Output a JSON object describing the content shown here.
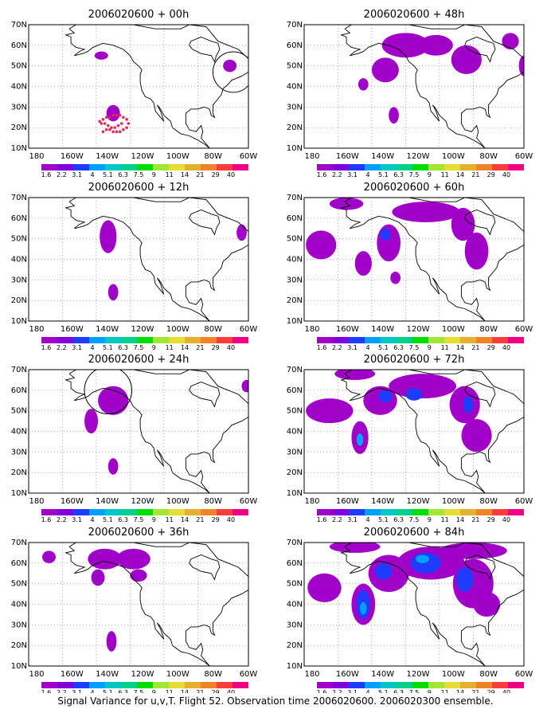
{
  "caption": "Signal Variance for u,v,T. Flight 52. Observation time 2006020600. 2006020300 ensemble.",
  "colorbar": {
    "labels": [
      "1.6",
      "2.2",
      "3.1",
      "4",
      "5.1",
      "6.3",
      "7.5",
      "9",
      "11",
      "14",
      "21",
      "29",
      "40"
    ],
    "colors": [
      "#a000c8",
      "#8200dc",
      "#1e3cff",
      "#00a0ff",
      "#00c8c8",
      "#00d28c",
      "#00dc00",
      "#a0e632",
      "#e6dc32",
      "#e6af2d",
      "#f08228",
      "#fa3c3c",
      "#f00082"
    ]
  },
  "axes": {
    "x_ticks": [
      "180",
      "160W",
      "140W",
      "120W",
      "100W",
      "80W",
      "60W"
    ],
    "y_ticks": [
      "10N",
      "20N",
      "30N",
      "40N",
      "50N",
      "60N",
      "70N"
    ],
    "xlim_deg_east": [
      170,
      300
    ],
    "ylim_deg_north": [
      10,
      70
    ],
    "grid": true
  },
  "chart_data": [
    {
      "type": "heatmap",
      "title": "2006020600 + 00h",
      "blobs": [
        {
          "lon": -147,
          "lat": 55,
          "rx": 4,
          "ry": 2,
          "level": 1
        },
        {
          "lon": -71,
          "lat": 50,
          "rx": 4,
          "ry": 3,
          "level": 1
        },
        {
          "lon": -140,
          "lat": 27,
          "rx": 4,
          "ry": 4,
          "level": 1
        }
      ],
      "points_lon": [
        -148,
        -146,
        -144,
        -142,
        -140,
        -138,
        -136,
        -134,
        -132,
        -131,
        -132,
        -134,
        -136,
        -138,
        -140,
        -142,
        -144,
        -146,
        -147,
        -145,
        -143,
        -141,
        -139,
        -137,
        -135
      ],
      "points_lat": [
        23,
        24,
        25,
        25,
        26,
        26,
        26,
        25,
        24,
        22,
        20,
        19,
        18,
        18,
        18,
        19,
        19,
        18,
        22,
        22,
        21,
        20,
        20,
        21,
        22
      ],
      "circle": {
        "lon": -69,
        "lat": 47,
        "r": 12
      }
    },
    {
      "type": "heatmap",
      "title": "2006020600 + 48h",
      "blobs": [
        {
          "lon": -142,
          "lat": 48,
          "rx": 8,
          "ry": 6,
          "level": 1
        },
        {
          "lon": -130,
          "lat": 60,
          "rx": 14,
          "ry": 6,
          "level": 1
        },
        {
          "lon": -112,
          "lat": 60,
          "rx": 10,
          "ry": 5,
          "level": 1
        },
        {
          "lon": -94,
          "lat": 53,
          "rx": 9,
          "ry": 7,
          "level": 1
        },
        {
          "lon": -155,
          "lat": 41,
          "rx": 3,
          "ry": 3,
          "level": 1
        },
        {
          "lon": -137,
          "lat": 26,
          "rx": 3,
          "ry": 4,
          "level": 1
        },
        {
          "lon": -68,
          "lat": 62,
          "rx": 5,
          "ry": 4,
          "level": 1
        },
        {
          "lon": -60,
          "lat": 50,
          "rx": 3,
          "ry": 5,
          "level": 1
        }
      ]
    },
    {
      "type": "heatmap",
      "title": "2006020600 + 12h",
      "blobs": [
        {
          "lon": -143,
          "lat": 51,
          "rx": 5,
          "ry": 8,
          "level": 1
        },
        {
          "lon": -140,
          "lat": 24,
          "rx": 3,
          "ry": 4,
          "level": 1
        },
        {
          "lon": -64,
          "lat": 53,
          "rx": 3,
          "ry": 4,
          "level": 1
        }
      ]
    },
    {
      "type": "heatmap",
      "title": "2006020600 + 60h",
      "blobs": [
        {
          "lon": -180,
          "lat": 47,
          "rx": 9,
          "ry": 7,
          "level": 1
        },
        {
          "lon": -155,
          "lat": 38,
          "rx": 5,
          "ry": 6,
          "level": 1
        },
        {
          "lon": -140,
          "lat": 48,
          "rx": 7,
          "ry": 9,
          "level": 1
        },
        {
          "lon": -118,
          "lat": 63,
          "rx": 20,
          "ry": 5,
          "level": 1
        },
        {
          "lon": -96,
          "lat": 57,
          "rx": 7,
          "ry": 8,
          "level": 1
        },
        {
          "lon": -88,
          "lat": 44,
          "rx": 7,
          "ry": 9,
          "level": 1
        },
        {
          "lon": -165,
          "lat": 67,
          "rx": 10,
          "ry": 3,
          "level": 1
        },
        {
          "lon": -136,
          "lat": 31,
          "rx": 3,
          "ry": 3,
          "level": 1
        },
        {
          "lon": -142,
          "lat": 52,
          "rx": 3,
          "ry": 3,
          "level": 2
        }
      ]
    },
    {
      "type": "heatmap",
      "title": "2006020600 + 24h",
      "blobs": [
        {
          "lon": -140,
          "lat": 55,
          "rx": 9,
          "ry": 7,
          "level": 1
        },
        {
          "lon": -153,
          "lat": 45,
          "rx": 4,
          "ry": 6,
          "level": 1
        },
        {
          "lon": -140,
          "lat": 23,
          "rx": 3,
          "ry": 4,
          "level": 1
        },
        {
          "lon": -61,
          "lat": 62,
          "rx": 3,
          "ry": 3,
          "level": 1
        }
      ],
      "circle": {
        "lon": -143,
        "lat": 60,
        "r": 14
      }
    },
    {
      "type": "heatmap",
      "title": "2006020600 + 72h",
      "blobs": [
        {
          "lon": -175,
          "lat": 50,
          "rx": 14,
          "ry": 6,
          "level": 1
        },
        {
          "lon": -157,
          "lat": 37,
          "rx": 5,
          "ry": 8,
          "level": 1
        },
        {
          "lon": -145,
          "lat": 55,
          "rx": 10,
          "ry": 7,
          "level": 1
        },
        {
          "lon": -120,
          "lat": 62,
          "rx": 20,
          "ry": 6,
          "level": 1
        },
        {
          "lon": -95,
          "lat": 53,
          "rx": 9,
          "ry": 9,
          "level": 1
        },
        {
          "lon": -88,
          "lat": 38,
          "rx": 9,
          "ry": 8,
          "level": 1
        },
        {
          "lon": -160,
          "lat": 68,
          "rx": 12,
          "ry": 3,
          "level": 1
        },
        {
          "lon": -157,
          "lat": 36,
          "rx": 2,
          "ry": 3,
          "level": 3
        },
        {
          "lon": -142,
          "lat": 57,
          "rx": 4,
          "ry": 3,
          "level": 2
        },
        {
          "lon": -125,
          "lat": 58,
          "rx": 5,
          "ry": 3,
          "level": 2
        },
        {
          "lon": -93,
          "lat": 53,
          "rx": 3,
          "ry": 4,
          "level": 2
        }
      ]
    },
    {
      "type": "heatmap",
      "title": "2006020600 + 36h",
      "blobs": [
        {
          "lon": -145,
          "lat": 62,
          "rx": 10,
          "ry": 5,
          "level": 1
        },
        {
          "lon": -128,
          "lat": 62,
          "rx": 10,
          "ry": 5,
          "level": 1
        },
        {
          "lon": -149,
          "lat": 53,
          "rx": 4,
          "ry": 4,
          "level": 1
        },
        {
          "lon": -125,
          "lat": 54,
          "rx": 5,
          "ry": 3,
          "level": 1
        },
        {
          "lon": -141,
          "lat": 22,
          "rx": 3,
          "ry": 5,
          "level": 1
        },
        {
          "lon": -178,
          "lat": 63,
          "rx": 4,
          "ry": 3,
          "level": 1
        }
      ]
    },
    {
      "type": "heatmap",
      "title": "2006020600 + 84h",
      "blobs": [
        {
          "lon": -178,
          "lat": 48,
          "rx": 10,
          "ry": 7,
          "level": 1
        },
        {
          "lon": -155,
          "lat": 40,
          "rx": 7,
          "ry": 10,
          "level": 1
        },
        {
          "lon": -140,
          "lat": 55,
          "rx": 12,
          "ry": 9,
          "level": 1
        },
        {
          "lon": -115,
          "lat": 60,
          "rx": 20,
          "ry": 8,
          "level": 1
        },
        {
          "lon": -90,
          "lat": 50,
          "rx": 12,
          "ry": 12,
          "level": 1
        },
        {
          "lon": -82,
          "lat": 40,
          "rx": 8,
          "ry": 6,
          "level": 1
        },
        {
          "lon": -90,
          "lat": 66,
          "rx": 20,
          "ry": 4,
          "level": 1
        },
        {
          "lon": -160,
          "lat": 68,
          "rx": 15,
          "ry": 3,
          "level": 1
        },
        {
          "lon": -155,
          "lat": 40,
          "rx": 4,
          "ry": 7,
          "level": 2
        },
        {
          "lon": -143,
          "lat": 56,
          "rx": 5,
          "ry": 4,
          "level": 2
        },
        {
          "lon": -118,
          "lat": 60,
          "rx": 9,
          "ry": 5,
          "level": 2
        },
        {
          "lon": -95,
          "lat": 52,
          "rx": 5,
          "ry": 6,
          "level": 2
        },
        {
          "lon": -155,
          "lat": 38,
          "rx": 2,
          "ry": 3,
          "level": 3
        },
        {
          "lon": -120,
          "lat": 62,
          "rx": 4,
          "ry": 2,
          "level": 3
        }
      ]
    }
  ]
}
